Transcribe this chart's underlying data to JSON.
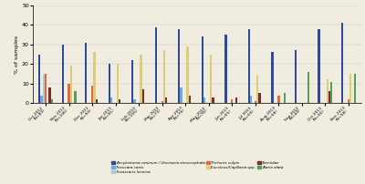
{
  "categories": [
    "Oct 2012\n(N=83)",
    "Nov 2012\n(N=106)",
    "Dec 2012\n(N=93)",
    "Jan 2013\n(N=91)",
    "Feb 2013\n(N=105)",
    "Mar 2013\n(N=73)",
    "Apr 2013\n(N=79)",
    "May 2013\n(N=76)",
    "Jun 2013\n(N=65)",
    "Jul 2013\n(N=59)",
    "Aug 2013\n(N=58)",
    "Sep 2013\n(N=44)",
    "Oct 2013\n(N=56)",
    "Nov 2013\n(N=58)"
  ],
  "series": [
    {
      "name": "Ancylostoma caninum / Uncinaria stenocephala",
      "color": "#2e4999",
      "values": [
        25,
        30,
        31,
        20,
        22,
        39,
        38,
        34,
        35,
        38,
        26,
        27,
        38,
        41
      ]
    },
    {
      "name": "Toxocara canis",
      "color": "#6fa8dc",
      "values": [
        4,
        0,
        0,
        3,
        2,
        0,
        8,
        3,
        0,
        4,
        0,
        0,
        0,
        0
      ]
    },
    {
      "name": "Toxascaris leonina",
      "color": "#a8cdd8",
      "values": [
        15,
        0,
        0,
        0,
        0,
        0,
        0,
        0,
        0,
        0,
        0,
        0,
        0,
        0
      ]
    },
    {
      "name": "Trichuris vulpis",
      "color": "#e06b3a",
      "values": [
        15,
        10,
        9,
        0,
        0,
        1,
        0,
        0,
        2,
        1,
        4,
        0,
        0,
        2
      ]
    },
    {
      "name": "Eucoleus/Capillaria spp.",
      "color": "#d9cc7a",
      "values": [
        0,
        19,
        26,
        20,
        25,
        27,
        29,
        25,
        0,
        14,
        0,
        0,
        12,
        15
      ]
    },
    {
      "name": "Taeniidae",
      "color": "#7b2d2d",
      "values": [
        8,
        0,
        2,
        2,
        7,
        3,
        4,
        3,
        3,
        5,
        0,
        0,
        6,
        0
      ]
    },
    {
      "name": "Alaria alata",
      "color": "#5a9c5a",
      "values": [
        2,
        6,
        0,
        0,
        0,
        0,
        0,
        0,
        0,
        0,
        5,
        16,
        11,
        15
      ]
    }
  ],
  "ylim": [
    0,
    50
  ],
  "yticks": [
    0,
    10,
    20,
    30,
    40,
    50
  ],
  "ylabel": "% of samples",
  "bg_color": "#f0ece0"
}
